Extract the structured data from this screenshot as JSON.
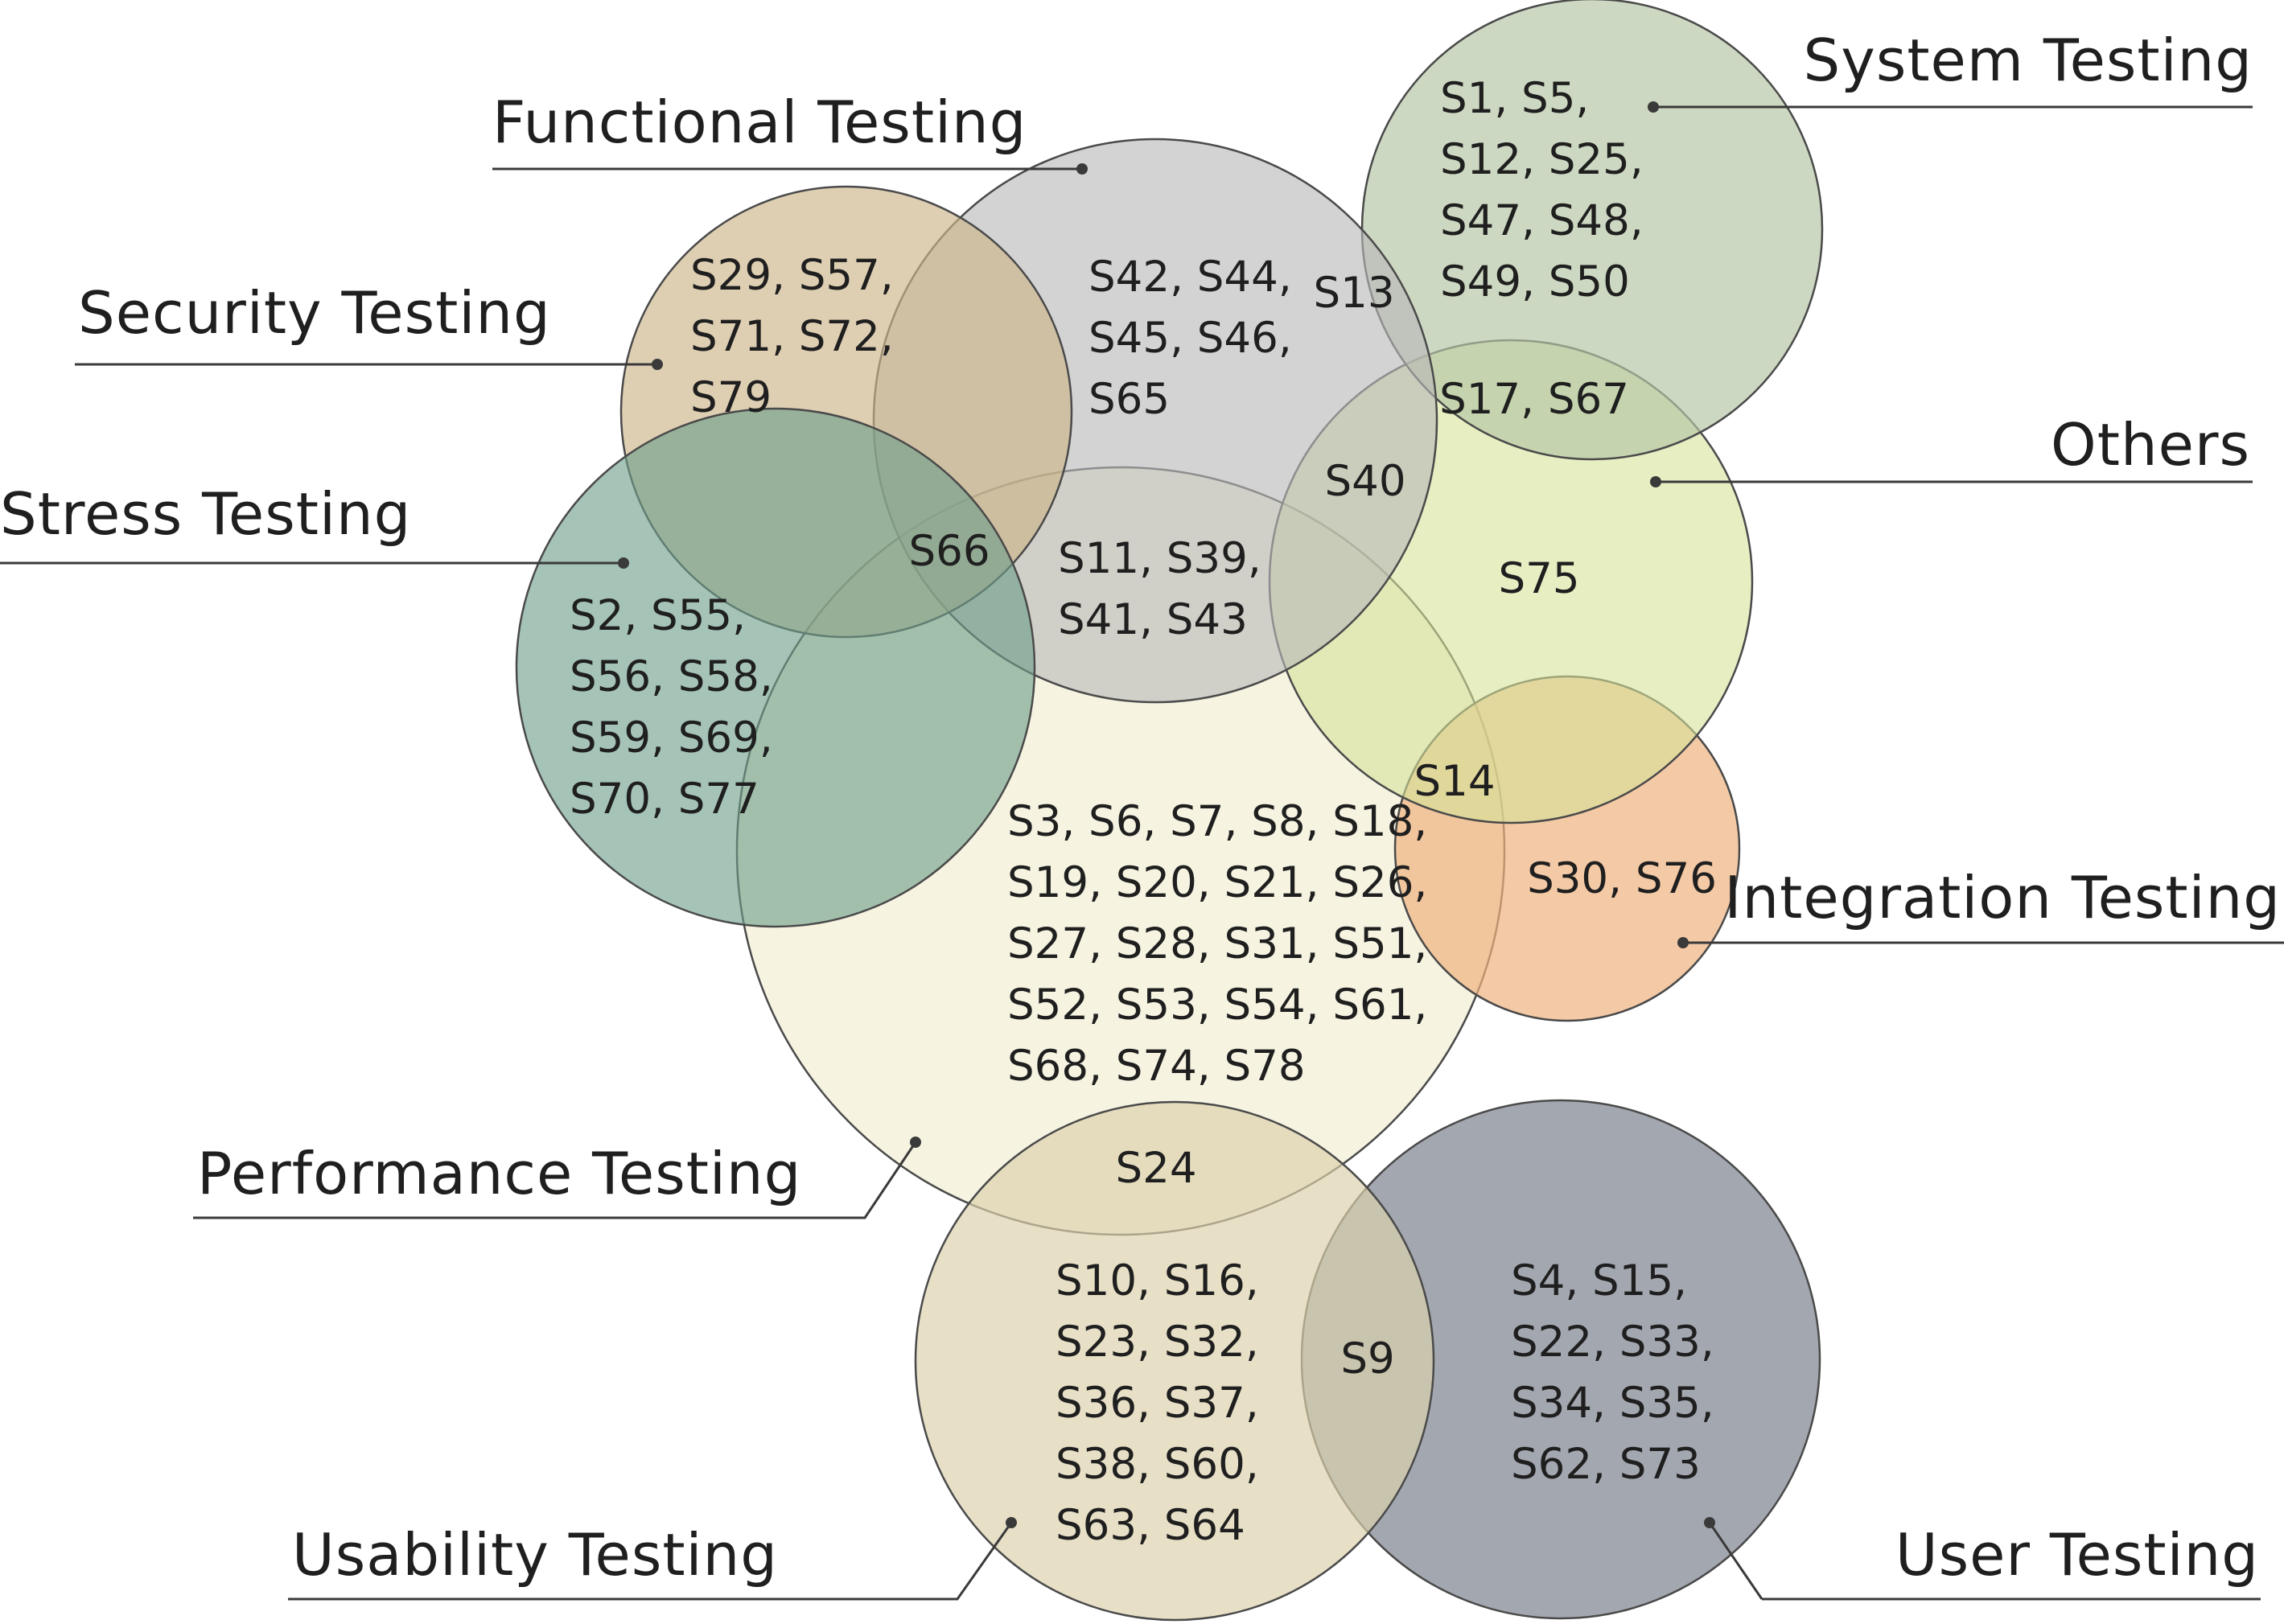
{
  "diagram": {
    "type": "venn",
    "sets": [
      {
        "id": "system",
        "name": "System Testing",
        "color": "#b5c6a5"
      },
      {
        "id": "functional",
        "name": "Functional Testing",
        "color": "#b8b8b8"
      },
      {
        "id": "security",
        "name": "Security Testing",
        "color": "#cdb58a"
      },
      {
        "id": "stress",
        "name": "Stress Testing",
        "color": "#6e9e8a"
      },
      {
        "id": "others",
        "name": "Others",
        "color": "#d6e39a"
      },
      {
        "id": "performance",
        "name": "Performance Testing",
        "color": "#f3efd6"
      },
      {
        "id": "integration",
        "name": "Integration Testing",
        "color": "#efb27f"
      },
      {
        "id": "usability",
        "name": "Usability Testing",
        "color": "#dcd2ad"
      },
      {
        "id": "user",
        "name": "User Testing",
        "color": "#7f8590"
      }
    ],
    "regions": [
      {
        "id": "system-only",
        "sets": [
          "system"
        ],
        "lines": [
          "S1, S5,",
          "S12, S25,",
          "S47, S48,",
          "S49, S50"
        ]
      },
      {
        "id": "functional-system",
        "sets": [
          "functional",
          "system"
        ],
        "lines": [
          "S13"
        ]
      },
      {
        "id": "system-others",
        "sets": [
          "system",
          "others"
        ],
        "lines": [
          "S17, S67"
        ]
      },
      {
        "id": "functional-only",
        "sets": [
          "functional"
        ],
        "lines": [
          "S42, S44,",
          "S45, S46,",
          "S65"
        ]
      },
      {
        "id": "security-only",
        "sets": [
          "security"
        ],
        "lines": [
          "S29, S57,",
          "S71, S72,",
          "S79"
        ]
      },
      {
        "id": "functional-others",
        "sets": [
          "functional",
          "others"
        ],
        "lines": [
          "S40"
        ]
      },
      {
        "id": "others-only",
        "sets": [
          "others"
        ],
        "lines": [
          "S75"
        ]
      },
      {
        "id": "functional-security-stress-performance",
        "sets": [
          "functional",
          "security",
          "stress",
          "performance"
        ],
        "lines": [
          "S66"
        ]
      },
      {
        "id": "functional-performance",
        "sets": [
          "functional",
          "performance"
        ],
        "lines": [
          "S11, S39,",
          "S41, S43"
        ]
      },
      {
        "id": "stress-only",
        "sets": [
          "stress"
        ],
        "lines": [
          "S2, S55,",
          "S56, S58,",
          "S59, S69,",
          "S70, S77"
        ]
      },
      {
        "id": "performance-others-integration",
        "sets": [
          "performance",
          "others",
          "integration"
        ],
        "lines": [
          "S14"
        ]
      },
      {
        "id": "performance-only",
        "sets": [
          "performance"
        ],
        "lines": [
          "S3, S6, S7, S8, S18,",
          "S19, S20, S21, S26,",
          "S27, S28, S31, S51,",
          "S52, S53, S54, S61,",
          "S68, S74, S78"
        ]
      },
      {
        "id": "integration-only",
        "sets": [
          "integration"
        ],
        "lines": [
          "S30, S76"
        ]
      },
      {
        "id": "performance-usability",
        "sets": [
          "performance",
          "usability"
        ],
        "lines": [
          "S24"
        ]
      },
      {
        "id": "usability-only",
        "sets": [
          "usability"
        ],
        "lines": [
          "S10, S16,",
          "S23, S32,",
          "S36, S37,",
          "S38, S60,",
          "S63, S64"
        ]
      },
      {
        "id": "usability-user",
        "sets": [
          "usability",
          "user"
        ],
        "lines": [
          "S9"
        ]
      },
      {
        "id": "user-only",
        "sets": [
          "user"
        ],
        "lines": [
          "S4, S15,",
          "S22, S33,",
          "S34, S35,",
          "S62, S73"
        ]
      }
    ]
  }
}
